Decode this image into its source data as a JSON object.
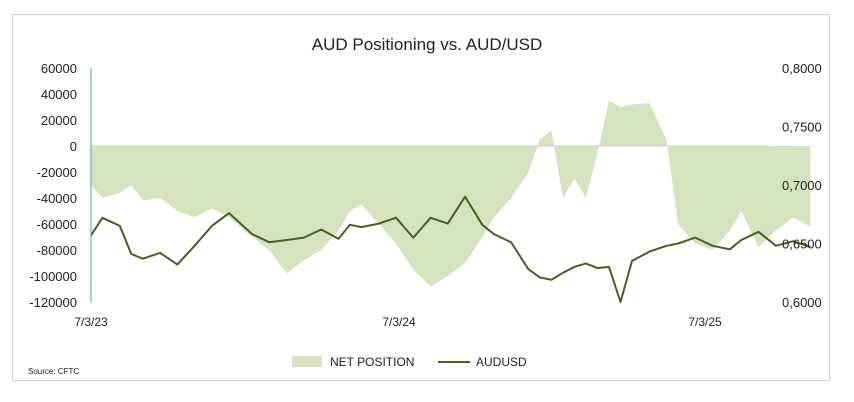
{
  "chart_data": {
    "type": "area+line",
    "title": "AUD Positioning vs. AUD/USD",
    "source": "Source: CFTC",
    "x_ticks": [
      "7/3/23",
      "7/3/24",
      "7/3/25"
    ],
    "left_axis": {
      "ticks": [
        "60000",
        "40000",
        "20000",
        "0",
        "-20000",
        "-40000",
        "-60000",
        "-80000",
        "-100000",
        "-120000"
      ],
      "ylim": [
        -120000,
        60000
      ]
    },
    "right_axis": {
      "ticks": [
        "0,8000",
        "0,7500",
        "0,7000",
        "0,6500",
        "0,6000"
      ],
      "ylim": [
        0.6,
        0.8
      ]
    },
    "legend_placement": "bottom-center",
    "colors": {
      "area": "#d5e4be",
      "line": "#4b5e22",
      "axis_marker": "#3fa7b8"
    },
    "series": [
      {
        "name": "NET POSITION",
        "type": "area",
        "axis": "left",
        "points": [
          [
            "2023-07-03",
            -30000
          ],
          [
            "2023-07-17",
            -40000
          ],
          [
            "2023-08-07",
            -36000
          ],
          [
            "2023-08-21",
            -30000
          ],
          [
            "2023-09-04",
            -42000
          ],
          [
            "2023-09-25",
            -40000
          ],
          [
            "2023-10-16",
            -50000
          ],
          [
            "2023-11-06",
            -55000
          ],
          [
            "2023-11-27",
            -48000
          ],
          [
            "2023-12-18",
            -55000
          ],
          [
            "2024-01-15",
            -70000
          ],
          [
            "2024-02-05",
            -80000
          ],
          [
            "2024-02-26",
            -98000
          ],
          [
            "2024-03-18",
            -88000
          ],
          [
            "2024-04-08",
            -80000
          ],
          [
            "2024-04-29",
            -65000
          ],
          [
            "2024-05-13",
            -50000
          ],
          [
            "2024-05-27",
            -45000
          ],
          [
            "2024-06-17",
            -60000
          ],
          [
            "2024-07-08",
            -75000
          ],
          [
            "2024-07-29",
            -95000
          ],
          [
            "2024-08-19",
            -108000
          ],
          [
            "2024-09-09",
            -100000
          ],
          [
            "2024-09-30",
            -90000
          ],
          [
            "2024-10-21",
            -70000
          ],
          [
            "2024-11-04",
            -55000
          ],
          [
            "2024-11-25",
            -40000
          ],
          [
            "2024-12-16",
            -20000
          ],
          [
            "2024-12-30",
            5000
          ],
          [
            "2025-01-13",
            12000
          ],
          [
            "2025-01-27",
            -40000
          ],
          [
            "2025-02-10",
            -25000
          ],
          [
            "2025-02-24",
            -40000
          ],
          [
            "2025-03-10",
            -5000
          ],
          [
            "2025-03-24",
            35000
          ],
          [
            "2025-04-07",
            30000
          ],
          [
            "2025-04-21",
            32000
          ],
          [
            "2025-05-12",
            33000
          ],
          [
            "2025-06-02",
            5000
          ],
          [
            "2025-06-16",
            -60000
          ],
          [
            "2025-07-07",
            -75000
          ],
          [
            "2025-07-28",
            -80000
          ],
          [
            "2025-08-18",
            -65000
          ],
          [
            "2025-09-01",
            -50000
          ],
          [
            "2025-09-22",
            -78000
          ],
          [
            "2025-10-13",
            -65000
          ],
          [
            "2025-11-03",
            -55000
          ],
          [
            "2025-11-24",
            -62000
          ]
        ]
      },
      {
        "name": "AUDUSD",
        "type": "line",
        "axis": "right",
        "points": [
          [
            "2023-07-03",
            0.657
          ],
          [
            "2023-07-17",
            0.672
          ],
          [
            "2023-08-07",
            0.665
          ],
          [
            "2023-08-21",
            0.641
          ],
          [
            "2023-09-04",
            0.637
          ],
          [
            "2023-09-25",
            0.642
          ],
          [
            "2023-10-16",
            0.632
          ],
          [
            "2023-11-06",
            0.648
          ],
          [
            "2023-11-27",
            0.665
          ],
          [
            "2023-12-18",
            0.676
          ],
          [
            "2024-01-15",
            0.658
          ],
          [
            "2024-02-05",
            0.651
          ],
          [
            "2024-02-26",
            0.653
          ],
          [
            "2024-03-18",
            0.655
          ],
          [
            "2024-04-08",
            0.662
          ],
          [
            "2024-04-29",
            0.654
          ],
          [
            "2024-05-13",
            0.666
          ],
          [
            "2024-05-27",
            0.664
          ],
          [
            "2024-06-17",
            0.667
          ],
          [
            "2024-07-08",
            0.672
          ],
          [
            "2024-07-29",
            0.655
          ],
          [
            "2024-08-19",
            0.672
          ],
          [
            "2024-09-09",
            0.667
          ],
          [
            "2024-09-30",
            0.69
          ],
          [
            "2024-10-21",
            0.666
          ],
          [
            "2024-11-04",
            0.658
          ],
          [
            "2024-11-25",
            0.651
          ],
          [
            "2024-12-16",
            0.628
          ],
          [
            "2024-12-30",
            0.621
          ],
          [
            "2025-01-13",
            0.619
          ],
          [
            "2025-01-27",
            0.625
          ],
          [
            "2025-02-10",
            0.63
          ],
          [
            "2025-02-24",
            0.633
          ],
          [
            "2025-03-10",
            0.629
          ],
          [
            "2025-03-24",
            0.63
          ],
          [
            "2025-04-07",
            0.6
          ],
          [
            "2025-04-21",
            0.635
          ],
          [
            "2025-05-12",
            0.643
          ],
          [
            "2025-06-02",
            0.648
          ],
          [
            "2025-06-16",
            0.65
          ],
          [
            "2025-07-07",
            0.655
          ],
          [
            "2025-07-28",
            0.648
          ],
          [
            "2025-08-18",
            0.645
          ],
          [
            "2025-09-01",
            0.653
          ],
          [
            "2025-09-22",
            0.66
          ],
          [
            "2025-10-13",
            0.648
          ],
          [
            "2025-11-03",
            0.652
          ],
          [
            "2025-11-24",
            0.647
          ]
        ]
      }
    ]
  }
}
